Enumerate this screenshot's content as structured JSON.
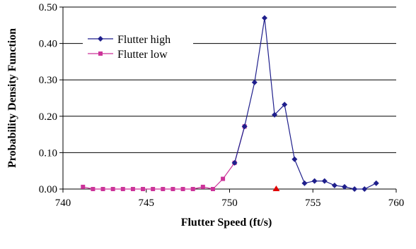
{
  "chart_data": {
    "type": "line",
    "title": "",
    "xlabel": "Flutter Speed (ft/s)",
    "ylabel": "Probability Density Function",
    "xlim": [
      740,
      760
    ],
    "ylim": [
      0,
      0.5
    ],
    "xticks": [
      740,
      745,
      750,
      755,
      760
    ],
    "xtick_labels": [
      "740",
      "745",
      "750",
      "755",
      "760"
    ],
    "yticks": [
      0,
      0.1,
      0.2,
      0.3,
      0.4,
      0.5
    ],
    "ytick_labels": [
      "0.00",
      "0.10",
      "0.20",
      "0.30",
      "0.40",
      "0.50"
    ],
    "grid": "horizontal",
    "legend_position": "top-left",
    "series": [
      {
        "name": "Flutter high",
        "color": "#1f1f8c",
        "marker": "diamond",
        "x": [
          750.3,
          750.9,
          751.5,
          752.1,
          752.7,
          753.3,
          753.9,
          754.5,
          755.1,
          755.7,
          756.3,
          756.9,
          757.5,
          758.1,
          758.8
        ],
        "y": [
          0.072,
          0.172,
          0.293,
          0.47,
          0.204,
          0.232,
          0.082,
          0.016,
          0.022,
          0.022,
          0.01,
          0.006,
          0.0,
          0.0,
          0.016
        ]
      },
      {
        "name": "Flutter low",
        "color": "#cc3399",
        "marker": "square",
        "x": [
          741.2,
          741.8,
          742.4,
          743.0,
          743.6,
          744.2,
          744.8,
          745.4,
          746.0,
          746.6,
          747.2,
          747.8,
          748.4,
          749.0,
          749.6,
          750.3,
          750.9
        ],
        "y": [
          0.006,
          0.0,
          0.0,
          0.0,
          0.0,
          0.0,
          0.0,
          0.0,
          0.0,
          0.0,
          0.0,
          0.0,
          0.006,
          0.0,
          0.028,
          0.072,
          0.172
        ]
      }
    ],
    "annotations": [
      {
        "type": "marker",
        "shape": "triangle",
        "color": "#e00000",
        "x": 752.8,
        "y": 0.0
      }
    ]
  }
}
